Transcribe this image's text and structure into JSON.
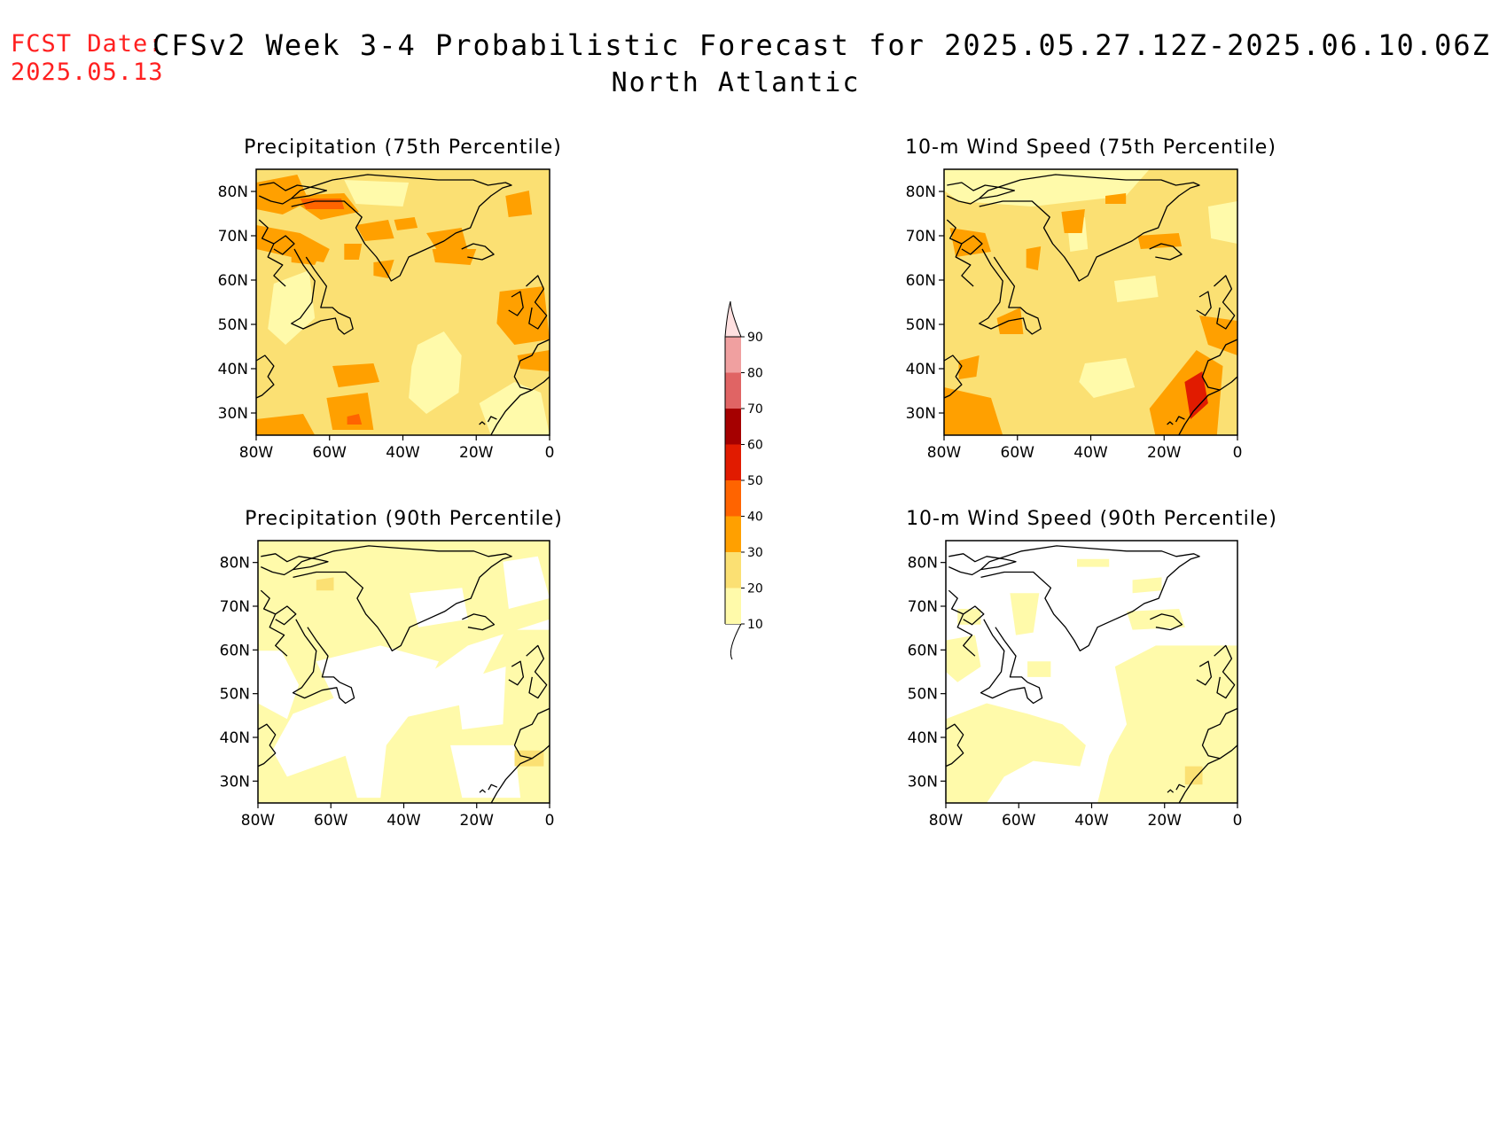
{
  "header": {
    "fcst_label": "FCST Date:",
    "fcst_date": "2025.05.13",
    "title": "CFSv2 Week 3-4 Probabilistic Forecast for 2025.05.27.12Z-2025.06.10.06Z",
    "subtitle": "North Atlantic"
  },
  "axes": {
    "lat_ticks": [
      "80N",
      "70N",
      "60N",
      "50N",
      "40N",
      "30N"
    ],
    "lon_ticks": [
      "80W",
      "60W",
      "40W",
      "20W",
      "0"
    ],
    "lat_range": [
      25,
      85
    ],
    "lon_range": [
      -80,
      0
    ]
  },
  "panels": [
    {
      "title": "Precipitation (75th Percentile)",
      "variable": "precipitation",
      "percentile": 75
    },
    {
      "title": "10-m Wind Speed (75th Percentile)",
      "variable": "wind_speed_10m",
      "percentile": 75
    },
    {
      "title": "Precipitation (90th Percentile)",
      "variable": "precipitation",
      "percentile": 90
    },
    {
      "title": "10-m Wind Speed (90th Percentile)",
      "variable": "wind_speed_10m",
      "percentile": 90
    }
  ],
  "colorbar": {
    "levels": [
      "10",
      "20",
      "30",
      "40",
      "50",
      "60",
      "70",
      "80",
      "90"
    ],
    "colors": [
      "#fffaaa",
      "#fbe073",
      "#ffa000",
      "#ff6400",
      "#e11b00",
      "#a50000",
      "#e06464",
      "#f0a0a0",
      "#ffe0e0"
    ]
  }
}
